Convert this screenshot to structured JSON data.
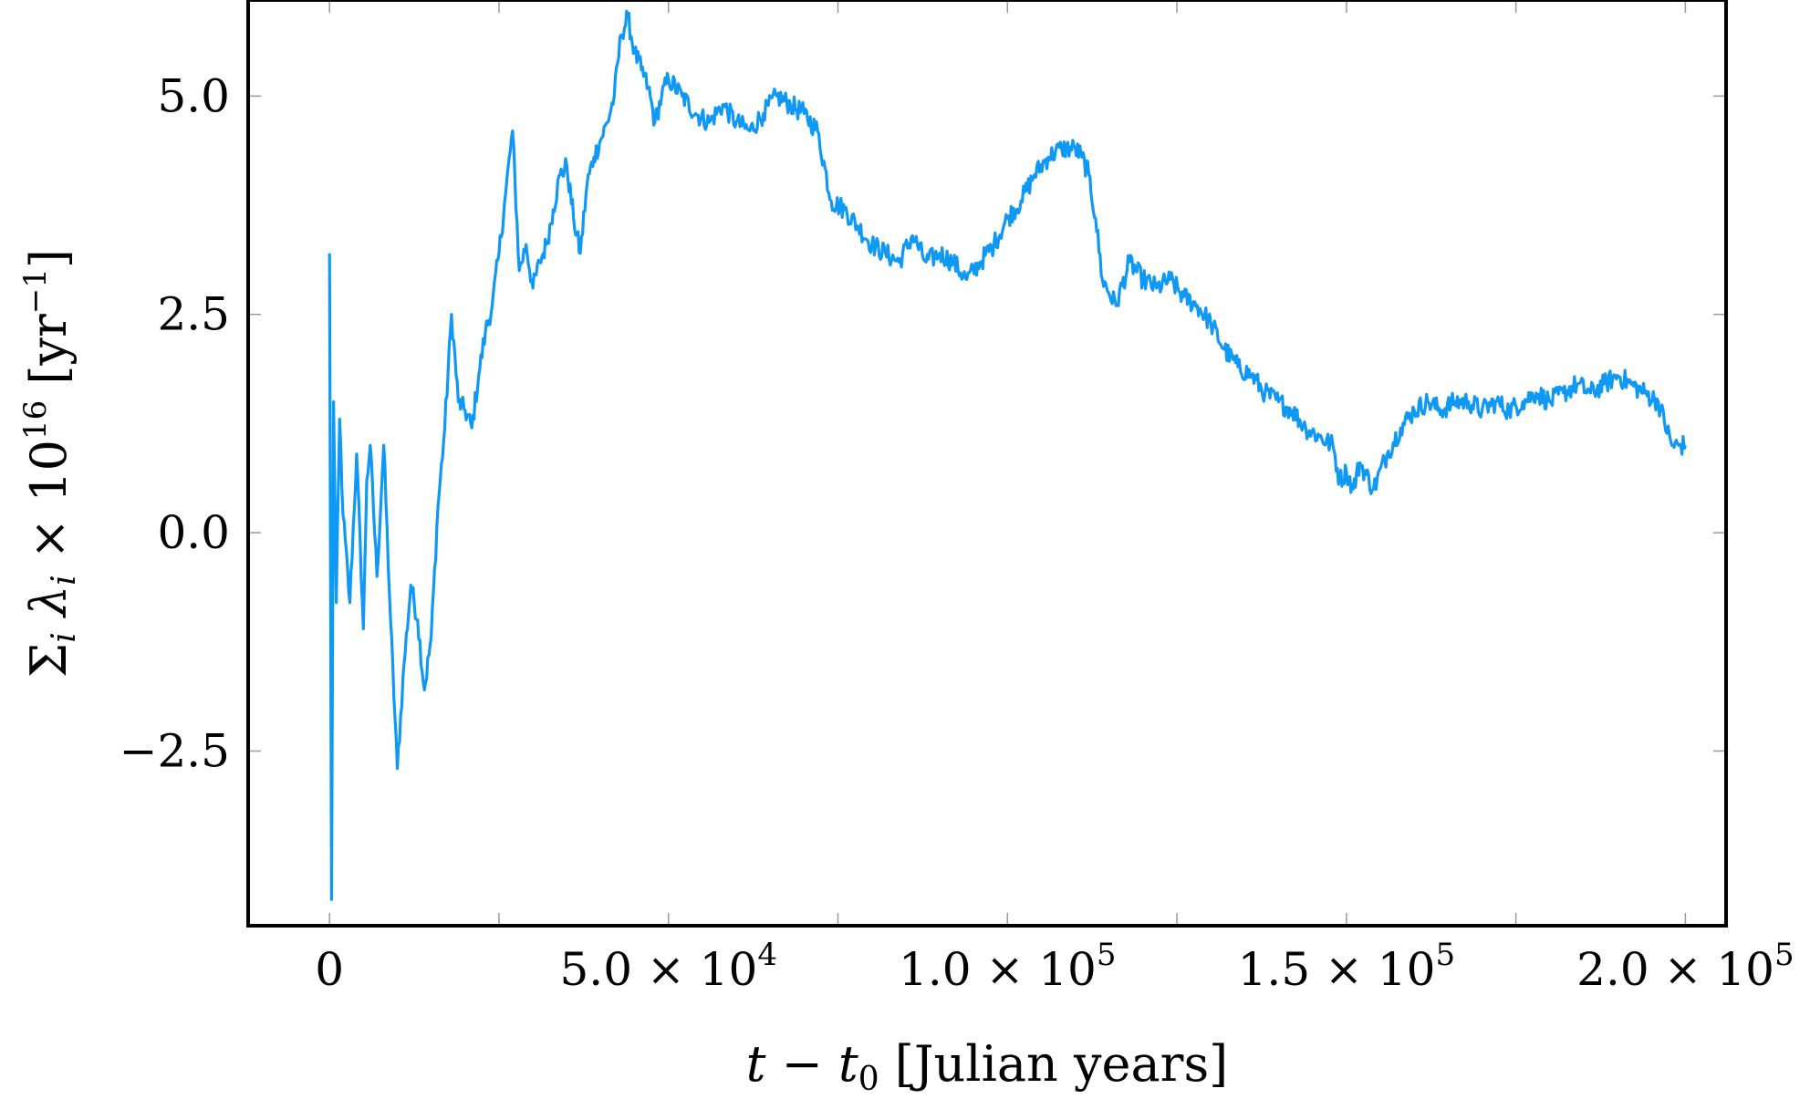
{
  "chart_data": {
    "type": "line",
    "title": "",
    "xlabel": "t − t₀ [Julian years]",
    "xlabel_parts": {
      "t": "t",
      "minus": " − ",
      "t0": "t",
      "sub0": "0",
      "rest": " [Julian years]"
    },
    "ylabel": "Σᵢ λᵢ × 10¹⁶ [yr⁻¹]",
    "ylabel_parts": {
      "sigma": "Σ",
      "sub_i1": "i",
      "lambda": " λ",
      "sub_i2": "i",
      "times": " × 10",
      "exp16": "16",
      "open": " [yr",
      "exp_neg1": "−1",
      "close": "]"
    },
    "xlim": [
      -12000,
      206000
    ],
    "ylim": [
      -4.5,
      6.1
    ],
    "x_ticks": [
      {
        "value": 0,
        "label": "0",
        "exp": ""
      },
      {
        "value": 50000,
        "label": "5.0 × 10",
        "exp": "4"
      },
      {
        "value": 100000,
        "label": "1.0 × 10",
        "exp": "5"
      },
      {
        "value": 150000,
        "label": "1.5 × 10",
        "exp": "5"
      },
      {
        "value": 200000,
        "label": "2.0 × 10",
        "exp": "5"
      }
    ],
    "x_minor_ticks": [
      25000,
      75000,
      125000,
      175000
    ],
    "y_ticks": [
      {
        "value": -2.5,
        "label": "−2.5"
      },
      {
        "value": 0.0,
        "label": "0.0"
      },
      {
        "value": 2.5,
        "label": "2.5"
      },
      {
        "value": 5.0,
        "label": "5.0"
      }
    ],
    "grid": false,
    "series": [
      {
        "name": "",
        "color": "#0f98f4",
        "x": [
          0,
          300,
          600,
          1000,
          1500,
          2000,
          3000,
          4000,
          5000,
          5500,
          6000,
          7000,
          8000,
          9000,
          10000,
          11000,
          12000,
          13000,
          14000,
          15000,
          16000,
          17000,
          18000,
          19000,
          20000,
          21000,
          22000,
          23000,
          24000,
          25000,
          26000,
          27000,
          28000,
          29000,
          30000,
          31000,
          32000,
          33000,
          34000,
          35000,
          36000,
          37000,
          38000,
          39000,
          40000,
          41000,
          42000,
          43000,
          44000,
          45000,
          46000,
          47000,
          48000,
          49000,
          50000,
          52000,
          54000,
          56000,
          58000,
          60000,
          62000,
          64000,
          66000,
          68000,
          70000,
          72000,
          74000,
          76000,
          78000,
          80000,
          82000,
          84000,
          86000,
          88000,
          90000,
          92000,
          94000,
          96000,
          98000,
          100000,
          102000,
          104000,
          106000,
          108000,
          110000,
          111000,
          112000,
          113000,
          114000,
          116000,
          118000,
          120000,
          122000,
          124000,
          126000,
          128000,
          130000,
          132000,
          134000,
          136000,
          138000,
          140000,
          142000,
          144000,
          146000,
          148000,
          149000,
          150000,
          151000,
          152000,
          154000,
          156000,
          158000,
          160000,
          162000,
          164000,
          166000,
          168000,
          170000,
          172000,
          174000,
          176000,
          178000,
          180000,
          182000,
          184000,
          186000,
          188000,
          190000,
          192000,
          194000,
          196000,
          198000,
          199000,
          200000
        ],
        "y": [
          3.2,
          -4.2,
          1.5,
          -0.8,
          1.3,
          0.2,
          -0.8,
          0.9,
          -1.1,
          0.6,
          1.0,
          -0.5,
          1.0,
          -1.0,
          -2.7,
          -1.5,
          -0.6,
          -1.0,
          -1.8,
          -1.2,
          0.3,
          1.2,
          2.5,
          1.5,
          1.4,
          1.2,
          1.8,
          2.3,
          2.6,
          3.2,
          3.9,
          4.6,
          3.0,
          3.3,
          2.8,
          3.1,
          3.3,
          3.7,
          4.1,
          4.2,
          3.6,
          3.2,
          4.0,
          4.3,
          4.5,
          4.7,
          5.0,
          5.7,
          5.9,
          5.5,
          5.3,
          5.1,
          4.7,
          5.0,
          5.2,
          5.0,
          4.8,
          4.7,
          4.9,
          4.7,
          4.6,
          4.8,
          5.0,
          4.9,
          4.8,
          4.6,
          3.8,
          3.7,
          3.5,
          3.3,
          3.2,
          3.1,
          3.4,
          3.1,
          3.2,
          3.1,
          2.9,
          3.1,
          3.3,
          3.6,
          3.8,
          4.1,
          4.3,
          4.4,
          4.4,
          4.3,
          4.1,
          3.6,
          2.9,
          2.6,
          3.1,
          2.9,
          2.8,
          2.9,
          2.7,
          2.6,
          2.4,
          2.1,
          1.9,
          1.8,
          1.6,
          1.5,
          1.4,
          1.2,
          1.1,
          1.0,
          0.6,
          0.7,
          0.5,
          0.8,
          0.5,
          0.9,
          1.2,
          1.4,
          1.5,
          1.4,
          1.5,
          1.5,
          1.4,
          1.5,
          1.4,
          1.5,
          1.6,
          1.5,
          1.6,
          1.7,
          1.6,
          1.7,
          1.8,
          1.7,
          1.6,
          1.5,
          1.0,
          1.0,
          1.0
        ],
        "noise_amplitude": 0.12
      }
    ]
  }
}
